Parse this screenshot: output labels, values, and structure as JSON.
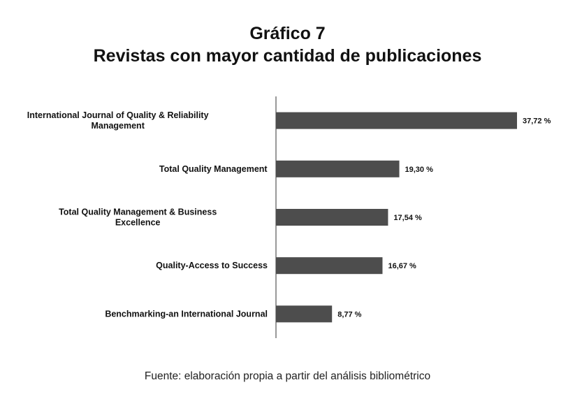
{
  "header": {
    "title_line1": "Gráfico 7",
    "title_line2": "Revistas con mayor cantidad de publicaciones"
  },
  "source_note": "Fuente: elaboración propia a partir del análisis bibliométrico",
  "colors": {
    "bar": "#4d4d4d",
    "axis": "#333333"
  },
  "chart_data": {
    "type": "bar",
    "orientation": "horizontal",
    "title": "Gráfico 7 Revistas con mayor cantidad de publicaciones",
    "xlabel": "",
    "ylabel": "",
    "grid": false,
    "legend": "none",
    "categories": [
      [
        "International Journal of Quality & Reliability",
        "Management"
      ],
      [
        "Total Quality Management"
      ],
      [
        "Total Quality Management & Business",
        "Excellence"
      ],
      [
        "Quality-Access to Success"
      ],
      [
        "Benchmarking-an International Journal"
      ]
    ],
    "values": [
      37.72,
      19.3,
      17.54,
      16.67,
      8.77
    ],
    "value_labels": [
      "37,72 %",
      "19,30 %",
      "17,54 %",
      "16,67 %",
      "8,77 %"
    ],
    "xlim": [
      0,
      40
    ]
  }
}
